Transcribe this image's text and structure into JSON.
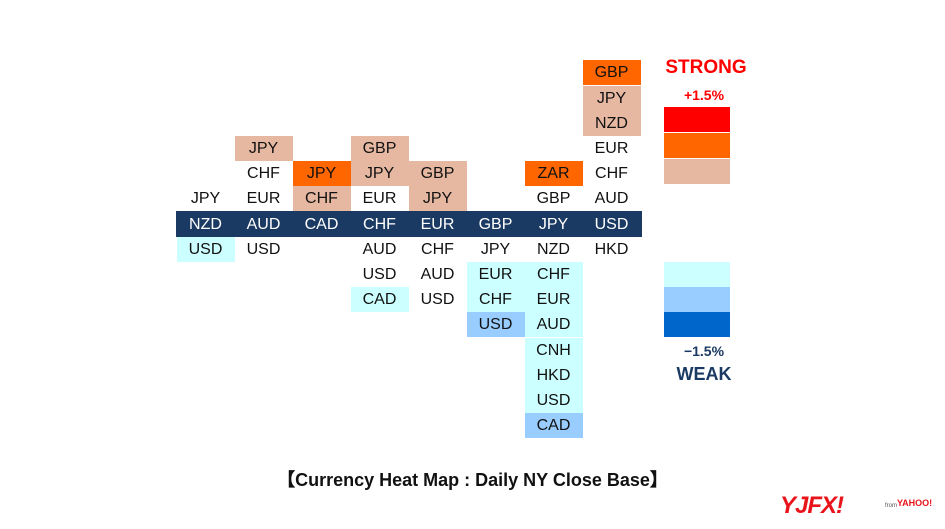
{
  "chart_data": {
    "type": "heatmap",
    "title": "【Currency Heat Map : Daily NY Close Base】",
    "colors": {
      "strong_3": "#ff0000",
      "strong_2": "#ff6600",
      "strong_1": "#e6b8a2",
      "neutral": "#ffffff",
      "weak_1": "#ccffff",
      "weak_2": "#99ccff",
      "weak_3": "#0066cc",
      "base_band": "#1b3a63"
    },
    "base_level": 0,
    "columns": [
      {
        "base": "NZD",
        "above": [
          {
            "label": "JPY",
            "level": 0
          }
        ],
        "below": [
          {
            "label": "USD",
            "level": -1
          }
        ]
      },
      {
        "base": "AUD",
        "above": [
          {
            "label": "EUR",
            "level": 0
          },
          {
            "label": "CHF",
            "level": 0
          },
          {
            "label": "JPY",
            "level": 1
          }
        ],
        "below": [
          {
            "label": "USD",
            "level": 0
          }
        ]
      },
      {
        "base": "CAD",
        "above": [
          {
            "label": "CHF",
            "level": 1
          },
          {
            "label": "JPY",
            "level": 2
          }
        ],
        "below": []
      },
      {
        "base": "CHF",
        "above": [
          {
            "label": "EUR",
            "level": 0
          },
          {
            "label": "JPY",
            "level": 1
          },
          {
            "label": "GBP",
            "level": 1
          }
        ],
        "below": [
          {
            "label": "AUD",
            "level": 0
          },
          {
            "label": "USD",
            "level": 0
          },
          {
            "label": "CAD",
            "level": -1
          }
        ]
      },
      {
        "base": "EUR",
        "above": [
          {
            "label": "JPY",
            "level": 1
          },
          {
            "label": "GBP",
            "level": 1
          }
        ],
        "below": [
          {
            "label": "CHF",
            "level": 0
          },
          {
            "label": "AUD",
            "level": 0
          },
          {
            "label": "USD",
            "level": 0
          }
        ]
      },
      {
        "base": "GBP",
        "above": [],
        "below": [
          {
            "label": "JPY",
            "level": 0
          },
          {
            "label": "EUR",
            "level": -1
          },
          {
            "label": "CHF",
            "level": -1
          },
          {
            "label": "USD",
            "level": -2
          }
        ]
      },
      {
        "base": "JPY",
        "above": [
          {
            "label": "GBP",
            "level": 0
          },
          {
            "label": "ZAR",
            "level": 2
          }
        ],
        "below": [
          {
            "label": "NZD",
            "level": 0
          },
          {
            "label": "CHF",
            "level": -1
          },
          {
            "label": "EUR",
            "level": -1
          },
          {
            "label": "AUD",
            "level": -1
          },
          {
            "label": "CNH",
            "level": -1
          },
          {
            "label": "HKD",
            "level": -1
          },
          {
            "label": "USD",
            "level": -1
          },
          {
            "label": "CAD",
            "level": -2
          }
        ]
      },
      {
        "base": "USD",
        "above": [
          {
            "label": "AUD",
            "level": 0
          },
          {
            "label": "CHF",
            "level": 0
          },
          {
            "label": "EUR",
            "level": 0
          },
          {
            "label": "NZD",
            "level": 1
          },
          {
            "label": "JPY",
            "level": 1
          },
          {
            "label": "GBP",
            "level": 2
          }
        ],
        "below": [
          {
            "label": "HKD",
            "level": 0
          }
        ]
      }
    ],
    "legend": {
      "strong_label": "STRONG",
      "weak_label": "WEAK",
      "max_label": "+1.5%",
      "min_label": "−1.5%",
      "strong_levels": [
        3,
        2,
        1
      ],
      "weak_levels": [
        -1,
        -2,
        -3
      ]
    }
  },
  "logo": {
    "main": "YJFX!",
    "from": "from",
    "sub": "YAHOO!"
  }
}
